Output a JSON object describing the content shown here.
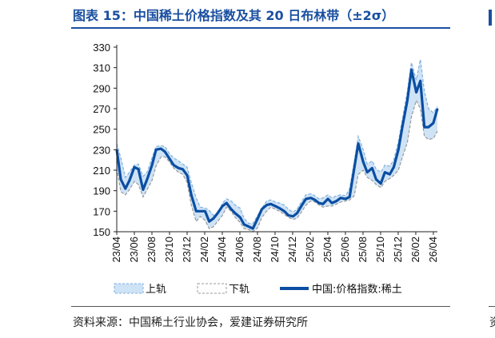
{
  "title": "图表 15：中国稀土价格指数及其 20 日布林带（±2σ）",
  "source": "资料来源：中国稀土行业协会，爱建证券研究所",
  "source_edge": "资",
  "colors": {
    "main": "#0b4ea2",
    "band_fill": "#cfe3f6",
    "band_edge": "#7fb2e0",
    "lower": "#9a9a9a",
    "title": "#1a4fa0"
  },
  "chart_data": {
    "type": "line",
    "title": "",
    "xlabel": "",
    "ylabel": "",
    "ylim": [
      150,
      330
    ],
    "y_ticks": [
      150,
      170,
      190,
      210,
      230,
      250,
      270,
      290,
      310,
      330
    ],
    "x_ticks": [
      "23/04",
      "23/06",
      "23/08",
      "23/10",
      "23/12",
      "24/02",
      "24/04",
      "24/06",
      "24/08",
      "24/10",
      "24/12",
      "25/02",
      "25/04",
      "25/06",
      "25/08",
      "25/10",
      "25/12",
      "26/02",
      "26/04"
    ],
    "x_range": [
      "2023-04-01",
      "2026-04-15"
    ],
    "grid": false,
    "legend_position": "bottom",
    "series": [
      {
        "name": "上轨",
        "style": "band",
        "points": [
          [
            "2023-04-01",
            236
          ],
          [
            "2023-04-15",
            222
          ],
          [
            "2023-05-01",
            203
          ],
          [
            "2023-05-15",
            208
          ],
          [
            "2023-06-01",
            215
          ],
          [
            "2023-06-15",
            216
          ],
          [
            "2023-07-01",
            204
          ],
          [
            "2023-07-15",
            208
          ],
          [
            "2023-08-01",
            222
          ],
          [
            "2023-08-15",
            233
          ],
          [
            "2023-09-01",
            234
          ],
          [
            "2023-09-15",
            233
          ],
          [
            "2023-10-01",
            226
          ],
          [
            "2023-10-15",
            222
          ],
          [
            "2023-11-01",
            219
          ],
          [
            "2023-11-15",
            216
          ],
          [
            "2023-12-01",
            213
          ],
          [
            "2023-12-15",
            198
          ],
          [
            "2024-01-01",
            183
          ],
          [
            "2024-01-15",
            174
          ],
          [
            "2024-02-01",
            173
          ],
          [
            "2024-02-15",
            171
          ],
          [
            "2024-03-01",
            166
          ],
          [
            "2024-03-15",
            167
          ],
          [
            "2024-04-01",
            178
          ],
          [
            "2024-04-15",
            182
          ],
          [
            "2024-05-01",
            180
          ],
          [
            "2024-05-15",
            176
          ],
          [
            "2024-06-01",
            173
          ],
          [
            "2024-06-15",
            163
          ],
          [
            "2024-07-01",
            158
          ],
          [
            "2024-07-15",
            158
          ],
          [
            "2024-08-01",
            166
          ],
          [
            "2024-08-15",
            173
          ],
          [
            "2024-09-01",
            180
          ],
          [
            "2024-09-15",
            181
          ],
          [
            "2024-10-01",
            179
          ],
          [
            "2024-10-15",
            178
          ],
          [
            "2024-11-01",
            176
          ],
          [
            "2024-11-15",
            172
          ],
          [
            "2024-12-01",
            169
          ],
          [
            "2024-12-15",
            172
          ],
          [
            "2025-01-01",
            180
          ],
          [
            "2025-01-15",
            186
          ],
          [
            "2025-02-01",
            187
          ],
          [
            "2025-02-15",
            185
          ],
          [
            "2025-03-01",
            182
          ],
          [
            "2025-03-15",
            183
          ],
          [
            "2025-04-01",
            186
          ],
          [
            "2025-04-15",
            183
          ],
          [
            "2025-05-01",
            185
          ],
          [
            "2025-05-15",
            186
          ],
          [
            "2025-06-01",
            185
          ],
          [
            "2025-06-15",
            192
          ],
          [
            "2025-07-01",
            218
          ],
          [
            "2025-07-15",
            243
          ],
          [
            "2025-08-01",
            230
          ],
          [
            "2025-08-15",
            216
          ],
          [
            "2025-09-01",
            219
          ],
          [
            "2025-09-15",
            211
          ],
          [
            "2025-10-01",
            208
          ],
          [
            "2025-10-15",
            215
          ],
          [
            "2025-11-01",
            214
          ],
          [
            "2025-11-15",
            220
          ],
          [
            "2025-12-01",
            238
          ],
          [
            "2025-12-15",
            260
          ],
          [
            "2026-01-01",
            287
          ],
          [
            "2026-01-15",
            315
          ],
          [
            "2026-02-01",
            298
          ],
          [
            "2026-02-15",
            318
          ],
          [
            "2026-03-01",
            287
          ],
          [
            "2026-03-15",
            270
          ],
          [
            "2026-04-01",
            266
          ],
          [
            "2026-04-15",
            272
          ]
        ]
      },
      {
        "name": "下轨",
        "style": "dashed",
        "points": [
          [
            "2023-04-01",
            212
          ],
          [
            "2023-04-15",
            189
          ],
          [
            "2023-05-01",
            186
          ],
          [
            "2023-05-15",
            191
          ],
          [
            "2023-06-01",
            199
          ],
          [
            "2023-06-15",
            196
          ],
          [
            "2023-07-01",
            184
          ],
          [
            "2023-07-15",
            191
          ],
          [
            "2023-08-01",
            200
          ],
          [
            "2023-08-15",
            214
          ],
          [
            "2023-09-01",
            223
          ],
          [
            "2023-09-15",
            223
          ],
          [
            "2023-10-01",
            218
          ],
          [
            "2023-10-15",
            212
          ],
          [
            "2023-11-01",
            208
          ],
          [
            "2023-11-15",
            206
          ],
          [
            "2023-12-01",
            198
          ],
          [
            "2023-12-15",
            176
          ],
          [
            "2024-01-01",
            160
          ],
          [
            "2024-01-15",
            165
          ],
          [
            "2024-02-01",
            161
          ],
          [
            "2024-02-15",
            153
          ],
          [
            "2024-03-01",
            155
          ],
          [
            "2024-03-15",
            160
          ],
          [
            "2024-04-01",
            166
          ],
          [
            "2024-04-15",
            174
          ],
          [
            "2024-05-01",
            170
          ],
          [
            "2024-05-15",
            164
          ],
          [
            "2024-06-01",
            159
          ],
          [
            "2024-06-15",
            153
          ],
          [
            "2024-07-01",
            152
          ],
          [
            "2024-07-15",
            150
          ],
          [
            "2024-08-01",
            154
          ],
          [
            "2024-08-15",
            164
          ],
          [
            "2024-09-01",
            170
          ],
          [
            "2024-09-15",
            174
          ],
          [
            "2024-10-01",
            172
          ],
          [
            "2024-10-15",
            170
          ],
          [
            "2024-11-01",
            167
          ],
          [
            "2024-11-15",
            164
          ],
          [
            "2024-12-01",
            162
          ],
          [
            "2024-12-15",
            163
          ],
          [
            "2025-01-01",
            170
          ],
          [
            "2025-01-15",
            176
          ],
          [
            "2025-02-01",
            180
          ],
          [
            "2025-02-15",
            179
          ],
          [
            "2025-03-01",
            176
          ],
          [
            "2025-03-15",
            174
          ],
          [
            "2025-04-01",
            175
          ],
          [
            "2025-04-15",
            175
          ],
          [
            "2025-05-01",
            177
          ],
          [
            "2025-05-15",
            179
          ],
          [
            "2025-06-01",
            180
          ],
          [
            "2025-06-15",
            181
          ],
          [
            "2025-07-01",
            185
          ],
          [
            "2025-07-15",
            206
          ],
          [
            "2025-08-01",
            210
          ],
          [
            "2025-08-15",
            203
          ],
          [
            "2025-09-01",
            200
          ],
          [
            "2025-09-15",
            196
          ],
          [
            "2025-10-01",
            193
          ],
          [
            "2025-10-15",
            199
          ],
          [
            "2025-11-01",
            202
          ],
          [
            "2025-11-15",
            205
          ],
          [
            "2025-12-01",
            210
          ],
          [
            "2025-12-15",
            223
          ],
          [
            "2026-01-01",
            237
          ],
          [
            "2026-01-15",
            262
          ],
          [
            "2026-02-01",
            278
          ],
          [
            "2026-02-15",
            270
          ],
          [
            "2026-03-01",
            243
          ],
          [
            "2026-03-15",
            240
          ],
          [
            "2026-04-01",
            241
          ],
          [
            "2026-04-15",
            248
          ]
        ]
      },
      {
        "name": "中国:价格指数:稀土",
        "style": "line",
        "points": [
          [
            "2023-04-01",
            230
          ],
          [
            "2023-04-15",
            201
          ],
          [
            "2023-05-01",
            192
          ],
          [
            "2023-05-15",
            200
          ],
          [
            "2023-06-01",
            213
          ],
          [
            "2023-06-15",
            211
          ],
          [
            "2023-07-01",
            191
          ],
          [
            "2023-07-15",
            201
          ],
          [
            "2023-08-01",
            215
          ],
          [
            "2023-08-15",
            230
          ],
          [
            "2023-09-01",
            231
          ],
          [
            "2023-09-15",
            228
          ],
          [
            "2023-10-01",
            221
          ],
          [
            "2023-10-15",
            215
          ],
          [
            "2023-11-01",
            212
          ],
          [
            "2023-11-15",
            211
          ],
          [
            "2023-12-01",
            205
          ],
          [
            "2023-12-15",
            186
          ],
          [
            "2024-01-01",
            170
          ],
          [
            "2024-01-15",
            170
          ],
          [
            "2024-02-01",
            170
          ],
          [
            "2024-02-15",
            160
          ],
          [
            "2024-03-01",
            163
          ],
          [
            "2024-03-15",
            168
          ],
          [
            "2024-04-01",
            175
          ],
          [
            "2024-04-15",
            178
          ],
          [
            "2024-05-01",
            172
          ],
          [
            "2024-05-15",
            168
          ],
          [
            "2024-06-01",
            164
          ],
          [
            "2024-06-15",
            157
          ],
          [
            "2024-07-01",
            155
          ],
          [
            "2024-07-15",
            153
          ],
          [
            "2024-08-01",
            163
          ],
          [
            "2024-08-15",
            172
          ],
          [
            "2024-09-01",
            176
          ],
          [
            "2024-09-15",
            177
          ],
          [
            "2024-10-01",
            175
          ],
          [
            "2024-10-15",
            173
          ],
          [
            "2024-11-01",
            170
          ],
          [
            "2024-11-15",
            166
          ],
          [
            "2024-12-01",
            165
          ],
          [
            "2024-12-15",
            168
          ],
          [
            "2025-01-01",
            176
          ],
          [
            "2025-01-15",
            182
          ],
          [
            "2025-02-01",
            183
          ],
          [
            "2025-02-15",
            181
          ],
          [
            "2025-03-01",
            178
          ],
          [
            "2025-03-15",
            177
          ],
          [
            "2025-04-01",
            182
          ],
          [
            "2025-04-15",
            178
          ],
          [
            "2025-05-01",
            180
          ],
          [
            "2025-05-15",
            183
          ],
          [
            "2025-06-01",
            182
          ],
          [
            "2025-06-15",
            184
          ],
          [
            "2025-07-01",
            212
          ],
          [
            "2025-07-15",
            236
          ],
          [
            "2025-08-01",
            218
          ],
          [
            "2025-08-15",
            208
          ],
          [
            "2025-09-01",
            212
          ],
          [
            "2025-09-15",
            201
          ],
          [
            "2025-10-01",
            197
          ],
          [
            "2025-10-15",
            208
          ],
          [
            "2025-11-01",
            206
          ],
          [
            "2025-11-15",
            213
          ],
          [
            "2025-12-01",
            230
          ],
          [
            "2025-12-15",
            253
          ],
          [
            "2026-01-01",
            278
          ],
          [
            "2026-01-15",
            308
          ],
          [
            "2026-02-01",
            286
          ],
          [
            "2026-02-15",
            297
          ],
          [
            "2026-03-01",
            252
          ],
          [
            "2026-03-15",
            252
          ],
          [
            "2026-04-01",
            256
          ],
          [
            "2026-04-15",
            270
          ]
        ]
      }
    ]
  }
}
